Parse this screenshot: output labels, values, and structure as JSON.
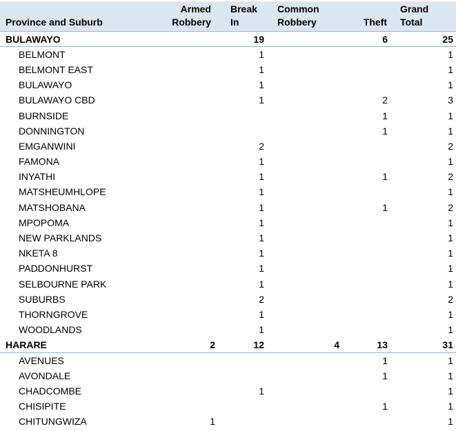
{
  "colors": {
    "header_bg": "#DCE6F1",
    "row_border": "#95B3D7",
    "text": "#000000",
    "row_bg": "#FFFFFF"
  },
  "table": {
    "columns": [
      {
        "id": "label",
        "label": "Province and Suburb"
      },
      {
        "id": "armed_robbery",
        "label": "Armed Robbery"
      },
      {
        "id": "break_in",
        "label": "Break\nIn"
      },
      {
        "id": "common_robbery",
        "label": "Common\nRobbery"
      },
      {
        "id": "theft",
        "label": "Theft"
      },
      {
        "id": "grand_total",
        "label": "Grand\nTotal"
      }
    ],
    "rows": [
      {
        "type": "province",
        "label": "BULAWAYO",
        "armed_robbery": "",
        "break_in": "19",
        "common_robbery": "",
        "theft": "6",
        "grand_total": "25"
      },
      {
        "type": "suburb",
        "label": "BELMONT",
        "armed_robbery": "",
        "break_in": "1",
        "common_robbery": "",
        "theft": "",
        "grand_total": "1"
      },
      {
        "type": "suburb",
        "label": "BELMONT EAST",
        "armed_robbery": "",
        "break_in": "1",
        "common_robbery": "",
        "theft": "",
        "grand_total": "1"
      },
      {
        "type": "suburb",
        "label": "BULAWAYO",
        "armed_robbery": "",
        "break_in": "1",
        "common_robbery": "",
        "theft": "",
        "grand_total": "1"
      },
      {
        "type": "suburb",
        "label": "BULAWAYO CBD",
        "armed_robbery": "",
        "break_in": "1",
        "common_robbery": "",
        "theft": "2",
        "grand_total": "3"
      },
      {
        "type": "suburb",
        "label": "BURNSIDE",
        "armed_robbery": "",
        "break_in": "",
        "common_robbery": "",
        "theft": "1",
        "grand_total": "1"
      },
      {
        "type": "suburb",
        "label": "DONNINGTON",
        "armed_robbery": "",
        "break_in": "",
        "common_robbery": "",
        "theft": "1",
        "grand_total": "1"
      },
      {
        "type": "suburb",
        "label": "EMGANWINI",
        "armed_robbery": "",
        "break_in": "2",
        "common_robbery": "",
        "theft": "",
        "grand_total": "2"
      },
      {
        "type": "suburb",
        "label": "FAMONA",
        "armed_robbery": "",
        "break_in": "1",
        "common_robbery": "",
        "theft": "",
        "grand_total": "1"
      },
      {
        "type": "suburb",
        "label": "INYATHI",
        "armed_robbery": "",
        "break_in": "1",
        "common_robbery": "",
        "theft": "1",
        "grand_total": "2"
      },
      {
        "type": "suburb",
        "label": "MATSHEUMHLOPE",
        "armed_robbery": "",
        "break_in": "1",
        "common_robbery": "",
        "theft": "",
        "grand_total": "1"
      },
      {
        "type": "suburb",
        "label": "MATSHOBANA",
        "armed_robbery": "",
        "break_in": "1",
        "common_robbery": "",
        "theft": "1",
        "grand_total": "2"
      },
      {
        "type": "suburb",
        "label": "MPOPOMA",
        "armed_robbery": "",
        "break_in": "1",
        "common_robbery": "",
        "theft": "",
        "grand_total": "1"
      },
      {
        "type": "suburb",
        "label": "NEW PARKLANDS",
        "armed_robbery": "",
        "break_in": "1",
        "common_robbery": "",
        "theft": "",
        "grand_total": "1"
      },
      {
        "type": "suburb",
        "label": "NKETA 8",
        "armed_robbery": "",
        "break_in": "1",
        "common_robbery": "",
        "theft": "",
        "grand_total": "1"
      },
      {
        "type": "suburb",
        "label": "PADDONHURST",
        "armed_robbery": "",
        "break_in": "1",
        "common_robbery": "",
        "theft": "",
        "grand_total": "1"
      },
      {
        "type": "suburb",
        "label": "SELBOURNE PARK",
        "armed_robbery": "",
        "break_in": "1",
        "common_robbery": "",
        "theft": "",
        "grand_total": "1"
      },
      {
        "type": "suburb",
        "label": "SUBURBS",
        "armed_robbery": "",
        "break_in": "2",
        "common_robbery": "",
        "theft": "",
        "grand_total": "2"
      },
      {
        "type": "suburb",
        "label": "THORNGROVE",
        "armed_robbery": "",
        "break_in": "1",
        "common_robbery": "",
        "theft": "",
        "grand_total": "1"
      },
      {
        "type": "suburb",
        "label": "WOODLANDS",
        "armed_robbery": "",
        "break_in": "1",
        "common_robbery": "",
        "theft": "",
        "grand_total": "1"
      },
      {
        "type": "province",
        "label": "HARARE",
        "armed_robbery": "2",
        "break_in": "12",
        "common_robbery": "4",
        "theft": "13",
        "grand_total": "31"
      },
      {
        "type": "suburb",
        "label": "AVENUES",
        "armed_robbery": "",
        "break_in": "",
        "common_robbery": "",
        "theft": "1",
        "grand_total": "1"
      },
      {
        "type": "suburb",
        "label": "AVONDALE",
        "armed_robbery": "",
        "break_in": "",
        "common_robbery": "",
        "theft": "1",
        "grand_total": "1"
      },
      {
        "type": "suburb",
        "label": "CHADCOMBE",
        "armed_robbery": "",
        "break_in": "1",
        "common_robbery": "",
        "theft": "",
        "grand_total": "1"
      },
      {
        "type": "suburb",
        "label": "CHISIPITE",
        "armed_robbery": "",
        "break_in": "",
        "common_robbery": "",
        "theft": "1",
        "grand_total": "1"
      },
      {
        "type": "suburb",
        "label": "CHITUNGWIZA",
        "armed_robbery": "1",
        "break_in": "",
        "common_robbery": "",
        "theft": "",
        "grand_total": "1"
      }
    ]
  }
}
